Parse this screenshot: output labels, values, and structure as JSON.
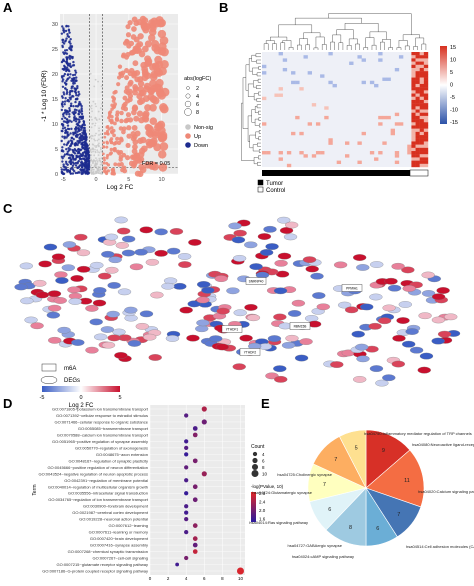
{
  "panels": {
    "a": {
      "letter": "A"
    },
    "b": {
      "letter": "B"
    },
    "c": {
      "letter": "C"
    },
    "d": {
      "letter": "D"
    },
    "e": {
      "letter": "E"
    }
  },
  "chart_data": [
    {
      "id": "A",
      "type": "scatter",
      "subtype": "volcano",
      "xlabel": "Log 2 FC",
      "ylabel": "-1 * Log 10 (FDR)",
      "x_ticks": [
        -5,
        0,
        5,
        10
      ],
      "y_ticks": [
        0,
        5,
        10,
        15,
        20,
        25,
        30
      ],
      "xlim": [
        -5.5,
        12.5
      ],
      "ylim": [
        0,
        32
      ],
      "threshold_label": "FDR = 0.05",
      "fc_cutoffs": [
        -1,
        1
      ],
      "size_legend_title": "abs(logFC)",
      "size_legend_values": [
        2,
        4,
        6,
        8
      ],
      "series": [
        {
          "name": "Non-sig",
          "color": "#c8c8c8"
        },
        {
          "name": "Up",
          "color": "#ee8877"
        },
        {
          "name": "Down",
          "color": "#1d2b8f"
        }
      ]
    },
    {
      "id": "B",
      "type": "heatmap",
      "color_scale_ticks": [
        15,
        10,
        5,
        0,
        -5,
        -10,
        -15
      ],
      "scale_colors": {
        "high": "#d7301f",
        "mid": "#ffffff",
        "low": "#2c52a8"
      },
      "legend": [
        {
          "label": "Tumor",
          "color": "#000000"
        },
        {
          "label": "Control",
          "color": "#ffffff"
        }
      ]
    },
    {
      "id": "C",
      "type": "network",
      "node_shape_legend": [
        "m6A",
        "DEGs"
      ],
      "hub_labels": [
        "SNRNP40",
        "PPMIA1",
        "YTHDF1",
        "YTHDF2",
        "RBM15B"
      ],
      "color_legend": {
        "label": "Log 2 FC",
        "ticks": [
          -5,
          0,
          5
        ],
        "low": "#3a5dc4",
        "high": "#c8102e"
      }
    },
    {
      "id": "D",
      "type": "scatter",
      "subtype": "dotplot",
      "ylabel": "Term",
      "xlabel": "Count",
      "x_ticks": [
        0,
        2,
        4,
        6,
        8,
        10
      ],
      "xlim": [
        0,
        10.5
      ],
      "terms": [
        "GO:0071805~potassium ion transmembrane transport",
        "GO:0071392~cellular response to estradiol stimulus",
        "GO:0071466~cellular response to organic substance",
        "GO:0055085~transmembrane transport",
        "GO:0070588~calcium ion transmembrane transport",
        "GO:0051965~positive regulation of synapse assembly",
        "GO:0050770~regulation of axonogenesis",
        "GO:0048675~axon extension",
        "GO:0048167~regulation of synaptic plasticity",
        "GO:0045666~positive regulation of neuron differentiation",
        "GO:0043524~negative regulation of neuron apoptotic process",
        "GO:0042391~regulation of membrane potential",
        "GO:0040014~regulation of multicellular organism growth",
        "GO:0035556~intracellular signal transduction",
        "GO:0034765~regulation of ion transmembrane transport",
        "GO:0030900~forebrain development",
        "GO:0021987~cerebral cortex development",
        "GO:0019228~neuronal action potential",
        "GO:0007612~learning",
        "GO:0007611~learning or memory",
        "GO:0007420~brain development",
        "GO:0007416~synapse assembly",
        "GO:0007268~chemical synaptic transmission",
        "GO:0007267~cell-cell signaling",
        "GO:0007215~glutamate receptor signaling pathway",
        "GO:0007186~G-protein coupled receptor signaling pathway"
      ],
      "counts": [
        6,
        4,
        6,
        5,
        5,
        4,
        4,
        4,
        5,
        4,
        6,
        4,
        5,
        4,
        5,
        4,
        4,
        4,
        5,
        4,
        5,
        5,
        5,
        4,
        3,
        10
      ],
      "pvalue_color": [
        2.4,
        1.6,
        1.8,
        1.5,
        2.0,
        1.4,
        1.6,
        1.3,
        1.9,
        1.7,
        2.2,
        1.5,
        1.9,
        1.3,
        1.8,
        1.5,
        1.4,
        1.6,
        2.1,
        1.5,
        2.3,
        1.7,
        2.6,
        1.9,
        1.4,
        2.8
      ],
      "size_legend_title": "Count",
      "size_legend_values": [
        4,
        6,
        8,
        10
      ],
      "color_legend_title": "-log(PValue, 10)",
      "color_legend_ticks": [
        2.8,
        2.4,
        2.0,
        1.6
      ],
      "color_low": "#2b1a9e",
      "color_high": "#e32626"
    },
    {
      "id": "E",
      "type": "pie",
      "labels": [
        "hsa04750:Inflammatory mediator regulation of TRP channels",
        "hsa04080:Neuroactive ligand-receptor interaction",
        "hsa04020:Calcium signaling pathway",
        "hsa04514:Cell adhesion molecules (CAMs)",
        "hsa04024:cAMP signaling pathway",
        "hsa04727:GABAergic synapse",
        "hsa04014:Ras signaling pathway",
        "hsa04724:Glutamatergic synapse",
        "hsa04725:Cholinergic synapse"
      ],
      "values": [
        9,
        11,
        7,
        6,
        8,
        6,
        7,
        7,
        5
      ],
      "colors": [
        "#d73027",
        "#f46d43",
        "#4575b4",
        "#6baed6",
        "#9ecae1",
        "#e0f3f8",
        "#ffffbf",
        "#fdae61",
        "#fee090"
      ]
    }
  ]
}
